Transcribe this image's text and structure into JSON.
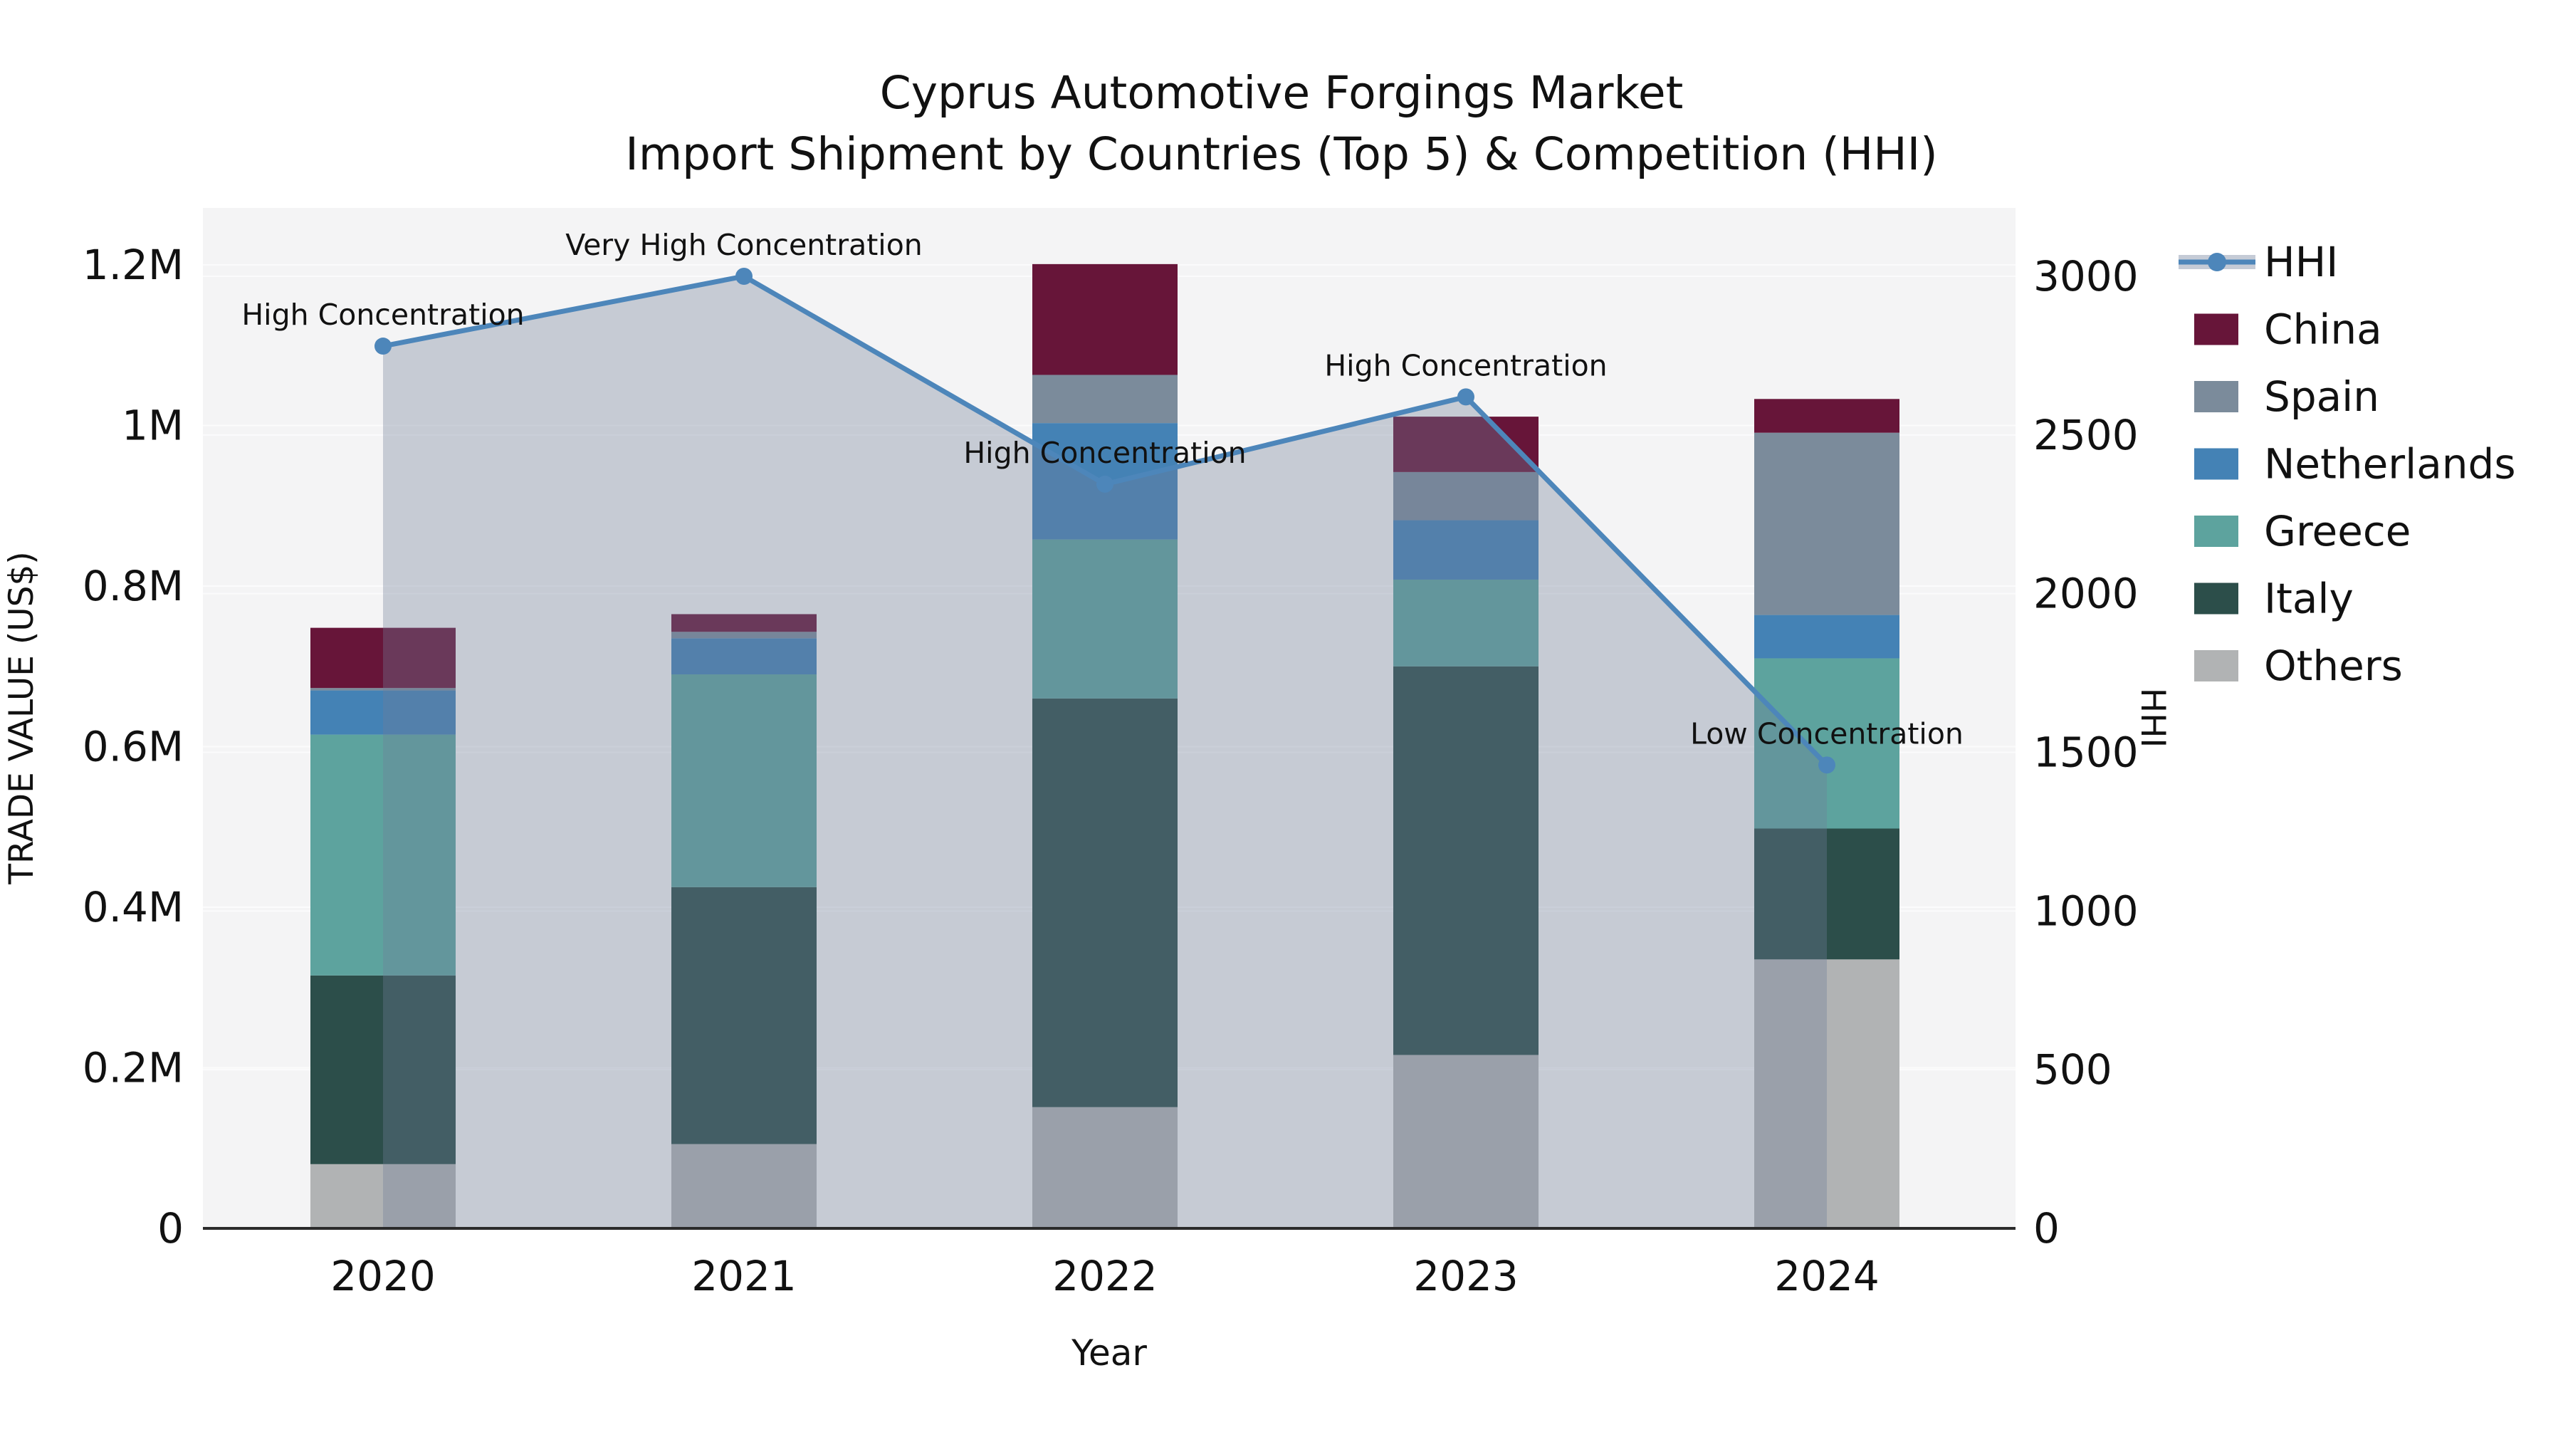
{
  "chart_data": {
    "type": "stacked-bar-with-line",
    "title_lines": [
      "Cyprus Automotive Forgings Market",
      "Import Shipment by Countries (Top 5) & Competition (HHI)"
    ],
    "xlabel": "Year",
    "ylabel_left": "TRADE VALUE (US$)",
    "ylabel_right": "HHI",
    "categories": [
      "2020",
      "2021",
      "2022",
      "2023",
      "2024"
    ],
    "bar_series": [
      {
        "name": "Others",
        "color": "#b1b3b4",
        "values": [
          80000,
          105000,
          151000,
          216000,
          335000
        ]
      },
      {
        "name": "Italy",
        "color": "#2c4e4a",
        "values": [
          235000,
          320000,
          509000,
          484000,
          163000
        ]
      },
      {
        "name": "Greece",
        "color": "#5da39e",
        "values": [
          300000,
          265000,
          198000,
          108000,
          212000
        ]
      },
      {
        "name": "Netherlands",
        "color": "#4482b5",
        "values": [
          55000,
          45000,
          145000,
          74000,
          54000
        ]
      },
      {
        "name": "Spain",
        "color": "#7b8b9b",
        "values": [
          3000,
          8000,
          60000,
          60000,
          227000
        ]
      },
      {
        "name": "China",
        "color": "#671539",
        "values": [
          75000,
          22000,
          138000,
          69000,
          42000
        ]
      }
    ],
    "line_series": {
      "name": "HHI",
      "color": "#4d86ba",
      "area_color": "rgba(113,126,153,0.35)",
      "values": [
        2780,
        3000,
        2345,
        2620,
        1460
      ]
    },
    "annotations": [
      {
        "category": "2020",
        "text": "High Concentration"
      },
      {
        "category": "2021",
        "text": "Very High Concentration"
      },
      {
        "category": "2022",
        "text": "High Concentration"
      },
      {
        "category": "2023",
        "text": "High Concentration"
      },
      {
        "category": "2024",
        "text": "Low Concentration"
      }
    ],
    "y_left": {
      "min": 0,
      "max": 1200000,
      "tick_values": [
        0,
        200000,
        400000,
        600000,
        800000,
        1000000,
        1200000
      ],
      "tick_labels": [
        "0",
        "0.2M",
        "0.4M",
        "0.6M",
        "0.8M",
        "1M",
        "1.2M"
      ]
    },
    "y_right": {
      "min": 0,
      "max": 3000,
      "tick_values": [
        0,
        500,
        1000,
        1500,
        2000,
        2500,
        3000
      ],
      "tick_labels": [
        "0",
        "500",
        "1000",
        "1500",
        "2000",
        "2500",
        "3000"
      ]
    },
    "legend": {
      "position": "right",
      "items": [
        "HHI",
        "China",
        "Spain",
        "Netherlands",
        "Greece",
        "Italy",
        "Others"
      ]
    },
    "grid": {
      "shown": true,
      "color": "#fbfbfc"
    },
    "plot_background": "#f4f4f5",
    "figure_background": "#ffffff"
  }
}
